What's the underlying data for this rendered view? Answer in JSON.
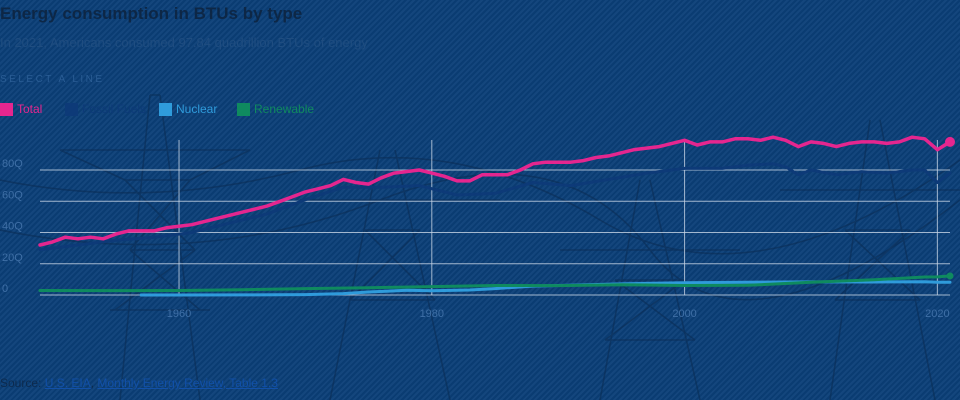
{
  "header": {
    "title": "Energy consumption in BTUs by type",
    "subtitle": "In 2021, Americans consumed 97.84 quadrillion BTUs of energy",
    "select_label": "SELECT A LINE"
  },
  "legend": [
    {
      "label": "Total",
      "color": "#e5268f"
    },
    {
      "label": "Fossil Fuels",
      "color": "#0d3a78"
    },
    {
      "label": "Nuclear",
      "color": "#2f9bdb"
    },
    {
      "label": "Renewable",
      "color": "#0f8a5f"
    }
  ],
  "source": {
    "prefix": "Source:",
    "link1": "U.S. EIA",
    "link2": "Monthly Energy Review, Table 1.3"
  },
  "chart_data": {
    "type": "line",
    "title": "Energy consumption in BTUs by type",
    "xlim": [
      1949,
      2021
    ],
    "ylim": [
      0,
      100
    ],
    "xticks": [
      1960,
      1980,
      2000,
      2020
    ],
    "yticks": [
      0,
      20,
      40,
      60,
      80
    ],
    "ytick_labels": [
      "0",
      "20Q",
      "40Q",
      "60Q",
      "80Q"
    ],
    "grid": true,
    "series": [
      {
        "name": "Total",
        "color": "#e5268f",
        "highlight_last": true,
        "x": [
          1949,
          1950,
          1951,
          1952,
          1953,
          1954,
          1955,
          1956,
          1957,
          1958,
          1959,
          1960,
          1961,
          1962,
          1963,
          1964,
          1965,
          1966,
          1967,
          1968,
          1969,
          1970,
          1971,
          1972,
          1973,
          1974,
          1975,
          1976,
          1977,
          1978,
          1979,
          1980,
          1981,
          1982,
          1983,
          1984,
          1985,
          1986,
          1987,
          1988,
          1989,
          1990,
          1991,
          1992,
          1993,
          1994,
          1995,
          1996,
          1997,
          1998,
          1999,
          2000,
          2001,
          2002,
          2003,
          2004,
          2005,
          2006,
          2007,
          2008,
          2009,
          2010,
          2011,
          2012,
          2013,
          2014,
          2015,
          2016,
          2017,
          2018,
          2019,
          2020,
          2021
        ],
        "values": [
          32,
          34,
          37,
          36,
          37,
          36,
          39,
          41,
          41,
          41,
          43,
          44,
          45,
          47,
          49,
          51,
          53,
          55,
          57,
          60,
          63,
          66,
          68,
          70,
          74,
          72,
          71,
          75,
          78,
          79,
          80,
          78,
          76,
          73,
          73,
          77,
          77,
          77,
          80,
          84,
          85,
          85,
          85,
          86,
          88,
          89,
          91,
          93,
          94,
          95,
          97,
          99,
          96,
          98,
          98,
          100,
          100,
          99,
          101,
          99,
          95,
          98,
          97,
          95,
          97,
          98,
          98,
          97,
          98,
          101,
          100,
          93,
          98
        ]
      },
      {
        "name": "Fossil Fuels",
        "color": "#0d3a78",
        "x": [
          1949,
          1952,
          1955,
          1958,
          1961,
          1964,
          1967,
          1970,
          1973,
          1976,
          1979,
          1982,
          1985,
          1988,
          1991,
          1994,
          1997,
          2000,
          2003,
          2005,
          2007,
          2008,
          2009,
          2010,
          2012,
          2014,
          2016,
          2018,
          2019,
          2020,
          2021
        ],
        "values": [
          29,
          32,
          35,
          37,
          40,
          46,
          52,
          61,
          69,
          69,
          70,
          64,
          65,
          72,
          70,
          74,
          78,
          81,
          81,
          83,
          84,
          82,
          77,
          80,
          77,
          79,
          78,
          80,
          80,
          72,
          78
        ]
      },
      {
        "name": "Nuclear",
        "color": "#2f9bdb",
        "x": [
          1957,
          1960,
          1965,
          1970,
          1973,
          1975,
          1978,
          1980,
          1983,
          1985,
          1988,
          1990,
          1995,
          2000,
          2005,
          2010,
          2015,
          2019,
          2020,
          2021
        ],
        "values": [
          0,
          0,
          0.04,
          0.24,
          0.9,
          1.9,
          3.0,
          2.7,
          3.2,
          4.1,
          5.7,
          6.1,
          7.1,
          7.9,
          8.2,
          8.4,
          8.3,
          8.5,
          8.2,
          8.1
        ]
      },
      {
        "name": "Renewable",
        "color": "#0f8a5f",
        "highlight_last": true,
        "x": [
          1949,
          1955,
          1960,
          1965,
          1970,
          1975,
          1980,
          1985,
          1990,
          1995,
          2000,
          2005,
          2010,
          2015,
          2019,
          2020,
          2021
        ],
        "values": [
          2.9,
          2.8,
          2.9,
          3.4,
          4.1,
          4.7,
          5.4,
          6.1,
          6.0,
          6.6,
          6.1,
          6.2,
          8.1,
          9.7,
          11.5,
          11.6,
          12.2
        ]
      }
    ]
  }
}
